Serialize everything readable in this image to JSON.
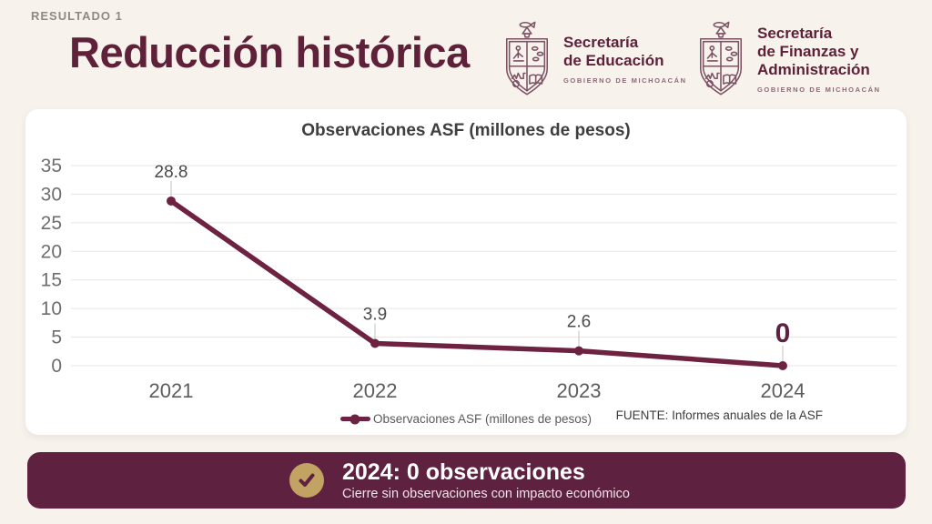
{
  "slide": {
    "kicker": "RESULTADO 1",
    "title": "Reducción histórica"
  },
  "logos": {
    "education": {
      "line1": "Secretaría",
      "line2": "de Educación",
      "sub": "GOBIERNO DE MICHOACÁN"
    },
    "finance": {
      "line1": "Secretaría",
      "line2": "de Finanzas y",
      "line3": "Administración",
      "sub": "GOBIERNO DE MICHOACÁN"
    }
  },
  "chart_data": {
    "type": "line",
    "title": "Observaciones ASF (millones de pesos)",
    "categories": [
      "2021",
      "2022",
      "2023",
      "2024"
    ],
    "values": [
      28.8,
      3.9,
      2.6,
      0
    ],
    "point_labels": [
      "28.8",
      "3.9",
      "2.6",
      "0"
    ],
    "highlight_index": 3,
    "ylim": [
      0,
      35
    ],
    "yticks": [
      0,
      5,
      10,
      15,
      20,
      25,
      30,
      35
    ],
    "grid": true,
    "legend": "Observaciones ASF (millones de pesos)",
    "legend_position": "bottom",
    "source": "FUENTE: Informes anuales de la ASF",
    "line_color": "#6e2242",
    "label_color": "#4a4a4a",
    "highlight_color": "#5e2140",
    "grid_color": "#e7e5e2",
    "tick_color": "#6e6e6e"
  },
  "banner": {
    "title": "2024: 0 observaciones",
    "subtitle": "Cierre sin observaciones con impacto económico"
  },
  "icons": {
    "check": "✔"
  },
  "colors": {
    "maroon": "#5e2140",
    "gold": "#c2a364",
    "background": "#f7f2ec",
    "card": "#ffffff"
  }
}
